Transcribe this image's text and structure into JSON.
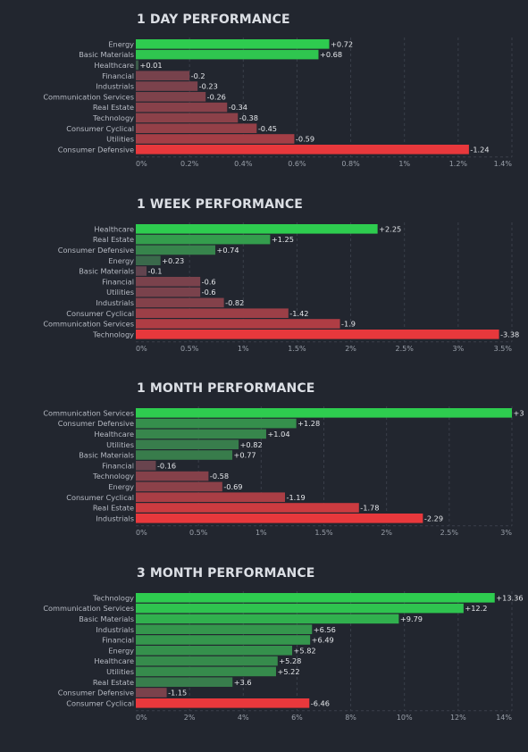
{
  "colors": {
    "background": "#22262f",
    "positive_strong": "#2ecc4f",
    "positive_weak": "#3c5a4a",
    "negative_weak": "#5c4550",
    "negative_strong": "#e8383c",
    "label_text": "#b6bac3",
    "value_text": "#e6e8ec"
  },
  "chart_data": [
    {
      "type": "bar",
      "orientation": "horizontal",
      "title": "1 DAY PERFORMANCE",
      "categories": [
        "Energy",
        "Basic Materials",
        "Healthcare",
        "Financial",
        "Industrials",
        "Communication Services",
        "Real Estate",
        "Technology",
        "Consumer Cyclical",
        "Utilities",
        "Consumer Defensive"
      ],
      "values": [
        0.72,
        0.68,
        0.01,
        -0.2,
        -0.23,
        -0.26,
        -0.34,
        -0.38,
        -0.45,
        -0.59,
        -1.24
      ],
      "value_labels": [
        "+0.72",
        "+0.68",
        "+0.01",
        "-0.2",
        "-0.23",
        "-0.26",
        "-0.34",
        "-0.38",
        "-0.45",
        "-0.59",
        "-1.24"
      ],
      "xlim": [
        0,
        1.4
      ],
      "ticks": [
        0,
        0.2,
        0.4,
        0.6,
        0.8,
        1,
        1.2,
        1.4
      ],
      "tick_labels": [
        "0%",
        "0.2%",
        "0.4%",
        "0.6%",
        "0.8%",
        "1%",
        "1.2%",
        "1.4%"
      ],
      "grid": true,
      "bar_value": "absolute"
    },
    {
      "type": "bar",
      "orientation": "horizontal",
      "title": "1 WEEK PERFORMANCE",
      "categories": [
        "Healthcare",
        "Real Estate",
        "Consumer Defensive",
        "Energy",
        "Basic Materials",
        "Financial",
        "Utilities",
        "Industrials",
        "Consumer Cyclical",
        "Communication Services",
        "Technology"
      ],
      "values": [
        2.25,
        1.25,
        0.74,
        0.23,
        -0.1,
        -0.6,
        -0.6,
        -0.82,
        -1.42,
        -1.9,
        -3.38
      ],
      "value_labels": [
        "+2.25",
        "+1.25",
        "+0.74",
        "+0.23",
        "-0.1",
        "-0.6",
        "-0.6",
        "-0.82",
        "-1.42",
        "-1.9",
        "-3.38"
      ],
      "xlim": [
        0,
        3.5
      ],
      "ticks": [
        0,
        0.5,
        1,
        1.5,
        2,
        2.5,
        3,
        3.5
      ],
      "tick_labels": [
        "0%",
        "0.5%",
        "1%",
        "1.5%",
        "2%",
        "2.5%",
        "3%",
        "3.5%"
      ],
      "grid": true,
      "bar_value": "absolute"
    },
    {
      "type": "bar",
      "orientation": "horizontal",
      "title": "1 MONTH PERFORMANCE",
      "categories": [
        "Communication Services",
        "Consumer Defensive",
        "Healthcare",
        "Utilities",
        "Basic Materials",
        "Financial",
        "Technology",
        "Energy",
        "Consumer Cyclical",
        "Real Estate",
        "Industrials"
      ],
      "values": [
        3,
        1.28,
        1.04,
        0.82,
        0.77,
        -0.16,
        -0.58,
        -0.69,
        -1.19,
        -1.78,
        -2.29
      ],
      "value_labels": [
        "+3",
        "+1.28",
        "+1.04",
        "+0.82",
        "+0.77",
        "-0.16",
        "-0.58",
        "-0.69",
        "-1.19",
        "-1.78",
        "-2.29"
      ],
      "xlim": [
        0,
        3
      ],
      "ticks": [
        0,
        0.5,
        1,
        1.5,
        2,
        2.5,
        3
      ],
      "tick_labels": [
        "0%",
        "0.5%",
        "1%",
        "1.5%",
        "2%",
        "2.5%",
        "3%"
      ],
      "grid": true,
      "bar_value": "absolute"
    },
    {
      "type": "bar",
      "orientation": "horizontal",
      "title": "3 MONTH PERFORMANCE",
      "categories": [
        "Technology",
        "Communication Services",
        "Basic Materials",
        "Industrials",
        "Financial",
        "Energy",
        "Healthcare",
        "Utilities",
        "Real Estate",
        "Consumer Defensive",
        "Consumer Cyclical"
      ],
      "values": [
        13.36,
        12.2,
        9.79,
        6.56,
        6.49,
        5.82,
        5.28,
        5.22,
        3.6,
        -1.15,
        -6.46
      ],
      "value_labels": [
        "+13.36",
        "+12.2",
        "+9.79",
        "+6.56",
        "+6.49",
        "+5.82",
        "+5.28",
        "+5.22",
        "+3.6",
        "-1.15",
        "-6.46"
      ],
      "xlim": [
        0,
        14
      ],
      "ticks": [
        0,
        2,
        4,
        6,
        8,
        10,
        12,
        14
      ],
      "tick_labels": [
        "0%",
        "2%",
        "4%",
        "6%",
        "8%",
        "10%",
        "12%",
        "14%"
      ],
      "grid": true,
      "bar_value": "absolute"
    }
  ]
}
